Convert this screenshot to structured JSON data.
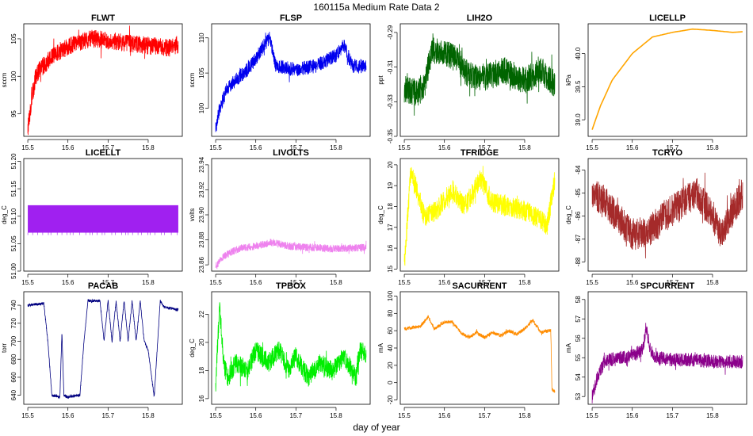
{
  "suptitle": "160115a   Medium Rate Data 2",
  "global_xlabel": "day of year",
  "chart_data": [
    {
      "type": "line",
      "title": "FLWT",
      "ylabel": "sccm",
      "color": "#ff0000",
      "xlim": [
        15.5,
        15.875
      ],
      "ylim": [
        92,
        107
      ],
      "xticks": [
        15.5,
        15.6,
        15.7,
        15.8
      ],
      "xtick_labels": [
        "15.5",
        "15.6",
        "15.7",
        "15.8"
      ],
      "yticks": [
        95,
        100,
        105
      ],
      "ytick_labels": [
        "95",
        "100",
        "105"
      ],
      "x": [
        15.5,
        15.51,
        15.52,
        15.53,
        15.55,
        15.57,
        15.6,
        15.63,
        15.66,
        15.7,
        15.74,
        15.78,
        15.82,
        15.85,
        15.875
      ],
      "y": [
        93,
        97,
        100,
        101,
        102,
        103,
        104,
        104.5,
        105,
        104.8,
        104.5,
        104.2,
        104,
        103.8,
        104.2
      ],
      "noise": 1.2
    },
    {
      "type": "line",
      "title": "FLSP",
      "ylabel": "sccm",
      "color": "#0000ee",
      "xlim": [
        15.5,
        15.875
      ],
      "ylim": [
        96,
        112
      ],
      "xticks": [
        15.5,
        15.6,
        15.7,
        15.8
      ],
      "xtick_labels": [
        "15.5",
        "15.6",
        "15.7",
        "15.8"
      ],
      "yticks": [
        100,
        105,
        110
      ],
      "ytick_labels": [
        "100",
        "105",
        "110"
      ],
      "x": [
        15.5,
        15.51,
        15.53,
        15.55,
        15.58,
        15.6,
        15.62,
        15.635,
        15.65,
        15.7,
        15.75,
        15.8,
        15.82,
        15.84,
        15.875
      ],
      "y": [
        97,
        100,
        103,
        104,
        105.5,
        107,
        109,
        110,
        106,
        105.5,
        106,
        107.5,
        109,
        106,
        106
      ],
      "noise": 1.0
    },
    {
      "type": "line",
      "title": "LIH2O",
      "ylabel": "ppt",
      "color": "#006400",
      "xlim": [
        15.5,
        15.875
      ],
      "ylim": [
        -0.35,
        -0.285
      ],
      "xticks": [
        15.5,
        15.6,
        15.7,
        15.8
      ],
      "xtick_labels": [
        "15.5",
        "15.6",
        "15.7",
        "15.8"
      ],
      "yticks": [
        -0.35,
        -0.33,
        -0.31,
        -0.29
      ],
      "ytick_labels": [
        "-0.35",
        "-0.33",
        "-0.31",
        "-0.29"
      ],
      "x": [
        15.5,
        15.53,
        15.55,
        15.57,
        15.6,
        15.63,
        15.66,
        15.7,
        15.75,
        15.8,
        15.84,
        15.875
      ],
      "y": [
        -0.322,
        -0.325,
        -0.32,
        -0.3,
        -0.302,
        -0.305,
        -0.315,
        -0.316,
        -0.312,
        -0.318,
        -0.312,
        -0.32
      ],
      "noise": 0.008
    },
    {
      "type": "line",
      "title": "LICELLP",
      "ylabel": "kPa",
      "color": "#ffa500",
      "xlim": [
        15.5,
        15.875
      ],
      "ylim": [
        38.75,
        40.45
      ],
      "xticks": [
        15.5,
        15.6,
        15.7,
        15.8
      ],
      "xtick_labels": [
        "15.5",
        "15.6",
        "15.7",
        "15.8"
      ],
      "yticks": [
        39.0,
        39.5,
        40.0
      ],
      "ytick_labels": [
        "39.0",
        "39.5",
        "40.0"
      ],
      "x": [
        15.5,
        15.52,
        15.55,
        15.6,
        15.65,
        15.7,
        15.75,
        15.8,
        15.85,
        15.875
      ],
      "y": [
        38.85,
        39.2,
        39.6,
        40.0,
        40.25,
        40.32,
        40.37,
        40.35,
        40.32,
        40.33
      ],
      "noise": 0.0
    },
    {
      "type": "line",
      "title": "LICELLT",
      "ylabel": "deg_C",
      "color": "#a020f0",
      "xlim": [
        15.5,
        15.875
      ],
      "ylim": [
        51.0,
        51.205
      ],
      "xticks": [
        15.5,
        15.6,
        15.7,
        15.8
      ],
      "xtick_labels": [
        "15.5",
        "15.6",
        "15.7",
        "15.8"
      ],
      "yticks": [
        51.0,
        51.05,
        51.1,
        51.15,
        51.2
      ],
      "ytick_labels": [
        "51.00",
        "51.05",
        "51.10",
        "51.15",
        "51.20"
      ],
      "band": [
        51.07,
        51.12
      ],
      "x": [
        15.5,
        15.875
      ],
      "y": [
        51.095,
        51.095
      ],
      "noise": 0.0
    },
    {
      "type": "line",
      "title": "LIVOLTS",
      "ylabel": "volts",
      "color": "#ee82ee",
      "xlim": [
        15.5,
        15.875
      ],
      "ylim": [
        23.855,
        23.945
      ],
      "xticks": [
        15.5,
        15.6,
        15.7,
        15.8
      ],
      "xtick_labels": [
        "15.5",
        "15.6",
        "15.7",
        "15.8"
      ],
      "yticks": [
        23.86,
        23.88,
        23.9,
        23.92,
        23.94
      ],
      "ytick_labels": [
        "23.86",
        "23.88",
        "23.90",
        "23.92",
        "23.94"
      ],
      "x": [
        15.5,
        15.51,
        15.53,
        15.56,
        15.6,
        15.64,
        15.68,
        15.72,
        15.8,
        15.875
      ],
      "y": [
        23.857,
        23.864,
        23.869,
        23.873,
        23.875,
        23.878,
        23.875,
        23.874,
        23.873,
        23.874
      ],
      "noise": 0.003
    },
    {
      "type": "line",
      "title": "TFRIDGE",
      "ylabel": "deg_C",
      "color": "#ffff00",
      "xlim": [
        15.5,
        15.875
      ],
      "ylim": [
        14.9,
        20.3
      ],
      "xticks": [
        15.5,
        15.6,
        15.7,
        15.8
      ],
      "xtick_labels": [
        "15.5",
        "15.6",
        "15.7",
        "15.8"
      ],
      "yticks": [
        15,
        16,
        17,
        18,
        19,
        20
      ],
      "ytick_labels": [
        "15",
        "16",
        "17",
        "18",
        "19",
        "20"
      ],
      "x": [
        15.5,
        15.505,
        15.515,
        15.525,
        15.55,
        15.58,
        15.62,
        15.65,
        15.69,
        15.72,
        15.76,
        15.8,
        15.84,
        15.855,
        15.875
      ],
      "y": [
        15.2,
        16.5,
        19.5,
        19.2,
        17.5,
        17.8,
        18.8,
        18.0,
        19.3,
        18.2,
        18.0,
        17.8,
        17.4,
        17.0,
        19.3
      ],
      "noise": 0.5
    },
    {
      "type": "line",
      "title": "TCRYO",
      "ylabel": "deg_C",
      "color": "#a52a2a",
      "xlim": [
        15.5,
        15.875
      ],
      "ylim": [
        -88.4,
        -83.5
      ],
      "xticks": [
        15.5,
        15.6,
        15.7,
        15.8
      ],
      "xtick_labels": [
        "15.5",
        "15.6",
        "15.7",
        "15.8"
      ],
      "yticks": [
        -88,
        -87,
        -86,
        -85,
        -84
      ],
      "ytick_labels": [
        "-88",
        "-87",
        "-86",
        "-85",
        "-84"
      ],
      "x": [
        15.5,
        15.53,
        15.56,
        15.6,
        15.64,
        15.68,
        15.72,
        15.76,
        15.8,
        15.82,
        15.85,
        15.875
      ],
      "y": [
        -85,
        -85.3,
        -86.0,
        -86.8,
        -86.7,
        -86.0,
        -85.5,
        -85.0,
        -86.0,
        -86.8,
        -85.8,
        -85.0
      ],
      "noise": 0.7
    },
    {
      "type": "line",
      "title": "PACAB",
      "ylabel": "torr",
      "color": "#000080",
      "xlim": [
        15.5,
        15.875
      ],
      "ylim": [
        630,
        755
      ],
      "xticks": [
        15.5,
        15.6,
        15.7,
        15.8
      ],
      "xtick_labels": [
        "15.5",
        "15.6",
        "15.7",
        "15.8"
      ],
      "yticks": [
        640,
        660,
        680,
        700,
        720,
        740
      ],
      "ytick_labels": [
        "640",
        "660",
        "680",
        "700",
        "720",
        "740"
      ],
      "x": [
        15.5,
        15.54,
        15.55,
        15.56,
        15.58,
        15.585,
        15.59,
        15.6,
        15.63,
        15.64,
        15.65,
        15.66,
        15.68,
        15.69,
        15.7,
        15.71,
        15.72,
        15.73,
        15.74,
        15.75,
        15.76,
        15.77,
        15.78,
        15.79,
        15.8,
        15.815,
        15.83,
        15.84,
        15.875
      ],
      "y": [
        740,
        742,
        700,
        640,
        638,
        710,
        640,
        638,
        640,
        700,
        745,
        745,
        745,
        700,
        745,
        700,
        745,
        700,
        745,
        700,
        745,
        700,
        745,
        700,
        690,
        638,
        745,
        738,
        735
      ],
      "noise": 1.5
    },
    {
      "type": "line",
      "title": "TPBOX",
      "ylabel": "deg_C",
      "color": "#00ee00",
      "xlim": [
        15.5,
        15.875
      ],
      "ylim": [
        15.6,
        23.6
      ],
      "xticks": [
        15.5,
        15.6,
        15.7,
        15.8
      ],
      "xtick_labels": [
        "15.5",
        "15.6",
        "15.7",
        "15.8"
      ],
      "yticks": [
        16,
        18,
        20,
        22
      ],
      "ytick_labels": [
        "16",
        "18",
        "20",
        "22"
      ],
      "x": [
        15.5,
        15.505,
        15.51,
        15.52,
        15.53,
        15.55,
        15.58,
        15.6,
        15.63,
        15.66,
        15.68,
        15.7,
        15.73,
        15.76,
        15.79,
        15.82,
        15.85,
        15.86,
        15.875
      ],
      "y": [
        16.5,
        20,
        22.5,
        18.5,
        17.5,
        18.5,
        18.0,
        19.5,
        18.5,
        19.5,
        18.0,
        19.0,
        17.5,
        18.5,
        18.0,
        19.0,
        17.5,
        19.5,
        19.2
      ],
      "noise": 0.7
    },
    {
      "type": "line",
      "title": "SACURRENT",
      "ylabel": "mA",
      "color": "#ff8c00",
      "xlim": [
        15.5,
        15.875
      ],
      "ylim": [
        -25,
        105
      ],
      "xticks": [
        15.5,
        15.6,
        15.7,
        15.8
      ],
      "xtick_labels": [
        "15.5",
        "15.6",
        "15.7",
        "15.8"
      ],
      "yticks": [
        -20,
        0,
        20,
        40,
        60,
        80,
        100
      ],
      "ytick_labels": [
        "-20",
        "0",
        "20",
        "40",
        "60",
        "80",
        "100"
      ],
      "x": [
        15.5,
        15.54,
        15.56,
        15.575,
        15.6,
        15.62,
        15.64,
        15.66,
        15.68,
        15.7,
        15.72,
        15.74,
        15.76,
        15.78,
        15.8,
        15.82,
        15.84,
        15.86,
        15.865,
        15.868,
        15.875
      ],
      "y": [
        62,
        65,
        76,
        62,
        70,
        70,
        58,
        52,
        58,
        52,
        58,
        54,
        60,
        56,
        62,
        72,
        58,
        60,
        60,
        -8,
        -10
      ],
      "noise": 2.0
    },
    {
      "type": "line",
      "title": "SPCURRENT",
      "ylabel": "mA",
      "color": "#8b008b",
      "xlim": [
        15.5,
        15.875
      ],
      "ylim": [
        52.6,
        58.4
      ],
      "xticks": [
        15.5,
        15.6,
        15.7,
        15.8
      ],
      "xtick_labels": [
        "15.5",
        "15.6",
        "15.7",
        "15.8"
      ],
      "yticks": [
        53,
        54,
        55,
        56,
        57,
        58
      ],
      "ytick_labels": [
        "53",
        "54",
        "55",
        "56",
        "57",
        "58"
      ],
      "x": [
        15.5,
        15.51,
        15.53,
        15.56,
        15.6,
        15.625,
        15.635,
        15.645,
        15.66,
        15.7,
        15.75,
        15.8,
        15.875
      ],
      "y": [
        53.0,
        53.8,
        54.8,
        55.0,
        55.1,
        55.4,
        56.5,
        55.4,
        55.0,
        54.9,
        54.9,
        54.8,
        54.8
      ],
      "noise": 0.35
    }
  ]
}
